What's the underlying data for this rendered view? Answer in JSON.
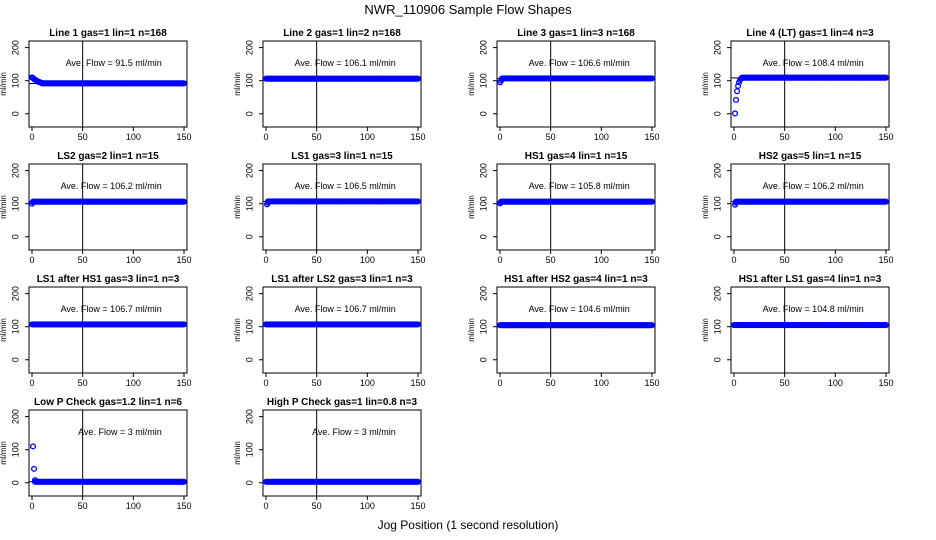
{
  "figure": {
    "title": "NWR_110906  Sample Flow Shapes",
    "xlabel": "Jog Position (1 second resolution)",
    "ylabel": "ml/min",
    "point_color": "#0000ff",
    "xticks": [
      0,
      50,
      100,
      150
    ],
    "yticks": [
      0,
      100,
      200
    ],
    "xlim": [
      0,
      150
    ],
    "ylim": [
      -40,
      220
    ]
  },
  "chart_data": [
    {
      "type": "scatter",
      "title": "Line 1 gas=1 lin=1 n=168",
      "annotation": "Ave. Flow =  91.5  ml/min",
      "ref_lines": {
        "hline": 91.5,
        "vline": 50
      },
      "points": [
        [
          0,
          110
        ],
        [
          1,
          108
        ],
        [
          2,
          105
        ],
        [
          3,
          103
        ],
        [
          4,
          101
        ],
        [
          5,
          99
        ],
        [
          6,
          97
        ],
        [
          7,
          96
        ],
        [
          8,
          95
        ],
        [
          9,
          94
        ],
        [
          10,
          93
        ]
      ],
      "plateau": {
        "x_start": 10,
        "x_end": 150,
        "y": 92
      }
    },
    {
      "type": "scatter",
      "title": "Line 2 gas=1 lin=2 n=168",
      "annotation": "Ave. Flow =  106.1  ml/min",
      "ref_lines": {
        "hline": 106.1,
        "vline": 50
      },
      "points": [],
      "plateau": {
        "x_start": 0,
        "x_end": 150,
        "y": 106
      }
    },
    {
      "type": "scatter",
      "title": "Line 3 gas=1 lin=3 n=168",
      "annotation": "Ave. Flow =  106.6  ml/min",
      "ref_lines": {
        "hline": 106.6,
        "vline": 50
      },
      "points": [
        [
          0,
          95
        ],
        [
          1,
          100
        ],
        [
          2,
          104
        ]
      ],
      "plateau": {
        "x_start": 2,
        "x_end": 150,
        "y": 107
      }
    },
    {
      "type": "scatter",
      "title": "Line 4 (LT) gas=1 lin=4 n=3",
      "annotation": "Ave. Flow =  108.4  ml/min",
      "ref_lines": {
        "hline": 108.4,
        "vline": 50
      },
      "points": [
        [
          1,
          1
        ],
        [
          2,
          42
        ],
        [
          3,
          68
        ],
        [
          4,
          84
        ],
        [
          5,
          95
        ],
        [
          6,
          102
        ],
        [
          7,
          106
        ],
        [
          8,
          108
        ]
      ],
      "plateau": {
        "x_start": 8,
        "x_end": 150,
        "y": 109
      }
    },
    {
      "type": "scatter",
      "title": "LS2 gas=2 lin=1 n=15",
      "annotation": "Ave. Flow =  106.2  ml/min",
      "ref_lines": {
        "hline": 106.2,
        "vline": 50
      },
      "points": [
        [
          0,
          100
        ],
        [
          1,
          104
        ]
      ],
      "plateau": {
        "x_start": 1,
        "x_end": 150,
        "y": 106
      }
    },
    {
      "type": "scatter",
      "title": "LS1 gas=3 lin=1 n=15",
      "annotation": "Ave. Flow =  106.5  ml/min",
      "ref_lines": {
        "hline": 106.5,
        "vline": 50
      },
      "points": [
        [
          1,
          98
        ],
        [
          2,
          103
        ]
      ],
      "plateau": {
        "x_start": 2,
        "x_end": 150,
        "y": 107
      }
    },
    {
      "type": "scatter",
      "title": "HS1 gas=4 lin=1 n=15",
      "annotation": "Ave. Flow =  105.8  ml/min",
      "ref_lines": {
        "hline": 105.8,
        "vline": 50
      },
      "points": [
        [
          0,
          101
        ],
        [
          1,
          104
        ]
      ],
      "plateau": {
        "x_start": 1,
        "x_end": 150,
        "y": 106
      }
    },
    {
      "type": "scatter",
      "title": "HS2 gas=5 lin=1 n=15",
      "annotation": "Ave. Flow =  106.2  ml/min",
      "ref_lines": {
        "hline": 106.2,
        "vline": 50
      },
      "points": [
        [
          1,
          97
        ],
        [
          2,
          103
        ]
      ],
      "plateau": {
        "x_start": 2,
        "x_end": 150,
        "y": 106
      }
    },
    {
      "type": "scatter",
      "title": "LS1 after HS1 gas=3 lin=1 n=3",
      "annotation": "Ave. Flow =  106.7  ml/min",
      "ref_lines": {
        "hline": 106.7,
        "vline": 50
      },
      "points": [],
      "plateau": {
        "x_start": 0,
        "x_end": 150,
        "y": 107
      }
    },
    {
      "type": "scatter",
      "title": "LS1 after LS2 gas=3 lin=1 n=3",
      "annotation": "Ave. Flow =  106.7  ml/min",
      "ref_lines": {
        "hline": 106.7,
        "vline": 50
      },
      "points": [],
      "plateau": {
        "x_start": 0,
        "x_end": 150,
        "y": 107
      }
    },
    {
      "type": "scatter",
      "title": "HS1 after HS2 gas=4 lin=1 n=3",
      "annotation": "Ave. Flow =  104.6  ml/min",
      "ref_lines": {
        "hline": 104.6,
        "vline": 50
      },
      "points": [],
      "plateau": {
        "x_start": 0,
        "x_end": 150,
        "y": 104.6
      }
    },
    {
      "type": "scatter",
      "title": "HS1 after LS1 gas=4 lin=1 n=3",
      "annotation": "Ave. Flow =  104.8  ml/min",
      "ref_lines": {
        "hline": 104.8,
        "vline": 50
      },
      "points": [],
      "plateau": {
        "x_start": 0,
        "x_end": 150,
        "y": 105
      }
    },
    {
      "type": "scatter",
      "title": "Low P Check gas=1.2 lin=1 n=6",
      "annotation": "Ave. Flow =  3  ml/min",
      "ref_lines": {
        "hline": 3,
        "vline": 50
      },
      "points": [
        [
          1,
          110
        ],
        [
          2,
          42
        ],
        [
          3,
          8
        ]
      ],
      "plateau": {
        "x_start": 3,
        "x_end": 150,
        "y": 3
      }
    },
    {
      "type": "scatter",
      "title": "High P Check gas=1 lin=0.8 n=3",
      "annotation": "Ave. Flow =  3  ml/min",
      "ref_lines": {
        "hline": 3,
        "vline": 50
      },
      "points": [],
      "plateau": {
        "x_start": 0,
        "x_end": 150,
        "y": 3
      }
    }
  ]
}
